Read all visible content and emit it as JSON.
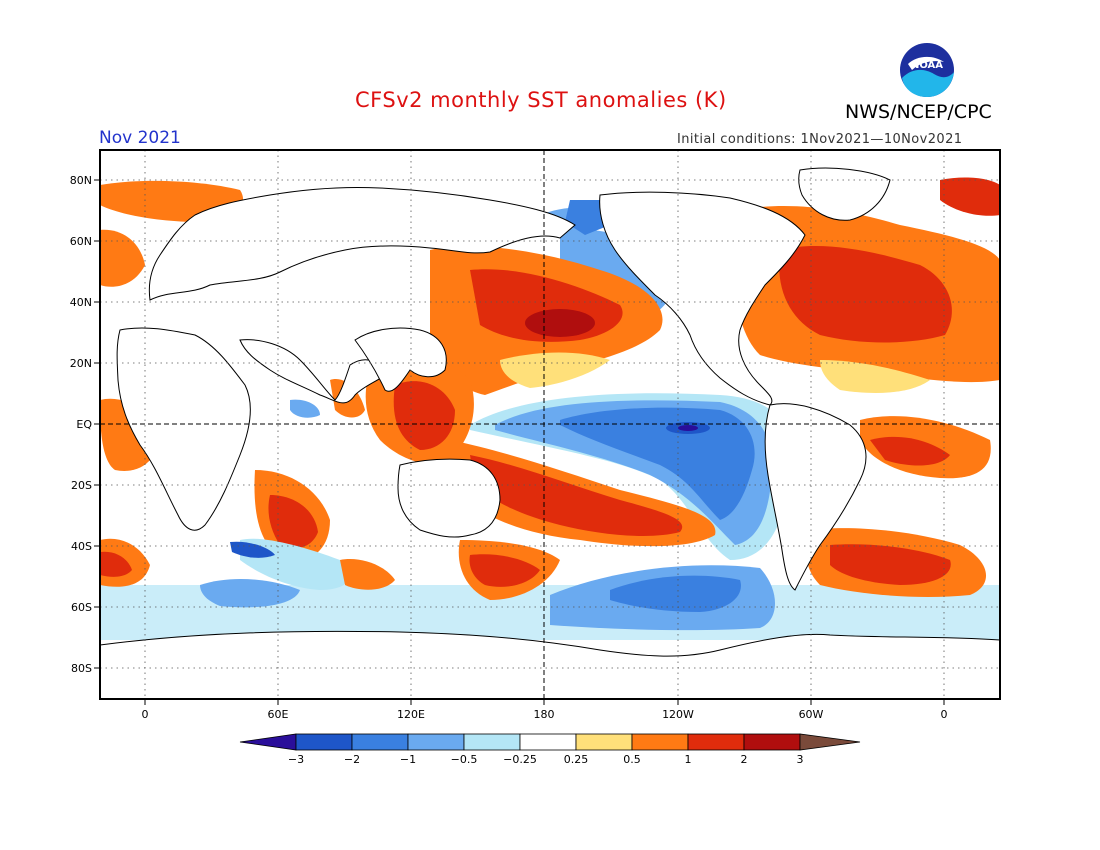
{
  "title": "CFSv2 monthly SST anomalies (K)",
  "agency": "NWS/NCEP/CPC",
  "logo_text": "NOAA",
  "month": "Nov 2021",
  "initial_conditions": "Initial conditions: 1Nov2021—10Nov2021",
  "axes": {
    "lat_labels": [
      "80N",
      "60N",
      "40N",
      "20N",
      "EQ",
      "20S",
      "40S",
      "60S",
      "80S"
    ],
    "lon_labels": [
      "0",
      "60E",
      "120E",
      "180",
      "120W",
      "60W",
      "0"
    ]
  },
  "colorbar": {
    "labels": [
      "−3",
      "−2",
      "−1",
      "−0.5",
      "−0.25",
      "0.25",
      "0.5",
      "1",
      "2",
      "3"
    ],
    "colors": [
      "#2a0e9a",
      "#1e56c8",
      "#3a80e0",
      "#6aaaf0",
      "#b4e6f6",
      "#ffffff",
      "#ffe07a",
      "#ff7a14",
      "#e02c0c",
      "#b00e0e",
      "#7a4a3a"
    ]
  }
}
